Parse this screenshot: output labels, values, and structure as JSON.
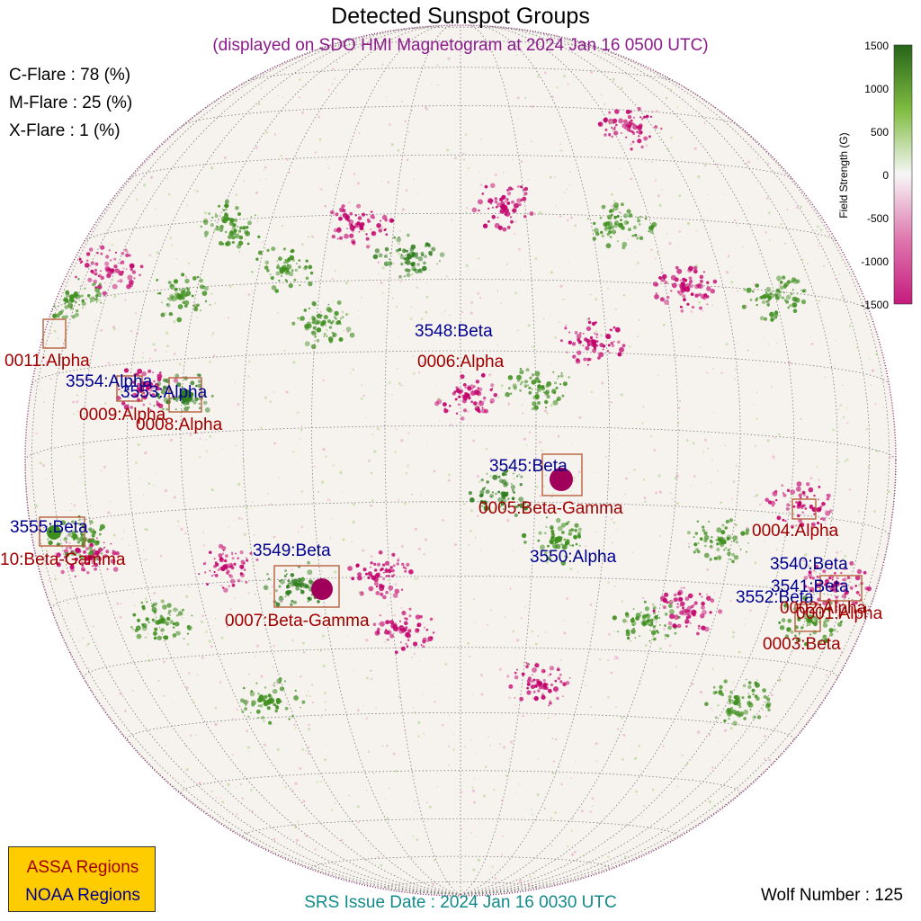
{
  "title": "Detected Sunspot Groups",
  "subtitle": "(displayed on SDO HMI Magnetogram at 2024 Jan 16 0500 UTC)",
  "flare_probabilities": [
    {
      "label": "C-Flare : 78 (%)",
      "value_percent": 78
    },
    {
      "label": "M-Flare : 25 (%)",
      "value_percent": 25
    },
    {
      "label": "X-Flare :  1 (%)",
      "value_percent": 1
    }
  ],
  "colorbar": {
    "title": "Field Strength (G)",
    "ticks": [
      "1500",
      "1000",
      "500",
      "0",
      "-500",
      "-1000",
      "-1500"
    ],
    "colors": {
      "positive": "#2e7d1e",
      "zero": "#f7f7f7",
      "negative": "#c2006b"
    }
  },
  "legend": {
    "assa": "ASSA Regions",
    "noaa": "NOAA Regions"
  },
  "colors": {
    "assa": "#a00000",
    "noaa": "#000090",
    "box": "#b8603c",
    "limb": "#8a3070"
  },
  "regions": {
    "noaa": [
      {
        "label": "3548:Beta"
      },
      {
        "label": "3554:Alpha"
      },
      {
        "label": "3553:Alpha"
      },
      {
        "label": "3545:Beta"
      },
      {
        "label": "3555:Beta"
      },
      {
        "label": "3549:Beta"
      },
      {
        "label": "3550:Alpha"
      },
      {
        "label": "3540:Beta"
      },
      {
        "label": "3541:Beta"
      },
      {
        "label": "3552:Beta"
      }
    ],
    "assa": [
      {
        "label": "0011:Alpha"
      },
      {
        "label": "0006:Alpha"
      },
      {
        "label": "0009:Alpha"
      },
      {
        "label": "0008:Alpha"
      },
      {
        "label": "0005:Beta-Gamma"
      },
      {
        "label": "0004:Alpha"
      },
      {
        "label": "10:Beta-Gamma"
      },
      {
        "label": "0007:Beta-Gamma"
      },
      {
        "label": "0002:Alpha"
      },
      {
        "label": "0001:Alpha"
      },
      {
        "label": "0003:Beta"
      }
    ]
  },
  "footer": {
    "srs": "SRS Issue Date : 2024 Jan 16 0030 UTC",
    "wolf": "Wolf Number : 125",
    "wolf_number": 125
  }
}
